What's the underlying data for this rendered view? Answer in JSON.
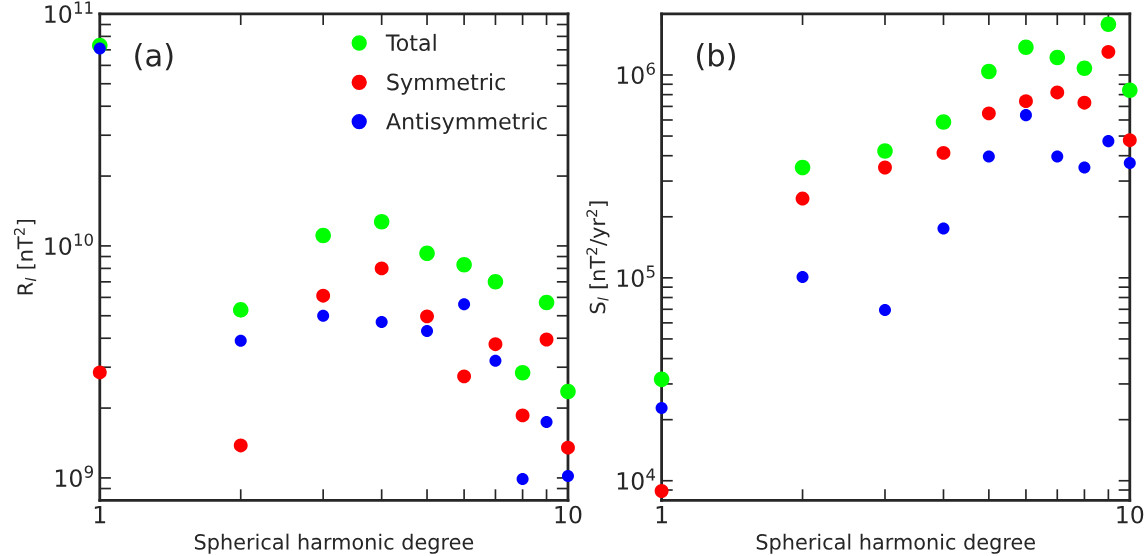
{
  "chart_data": [
    {
      "type": "scatter",
      "xlabel": "Spherical harmonic degree",
      "ylabel": "R$_{l}$ [nT$^{2}$]",
      "annotations": [
        "(a)"
      ],
      "log": "xy",
      "grid": false,
      "legend": "top right",
      "marker": "circle",
      "x": [
        1,
        2,
        3,
        4,
        5,
        6,
        7,
        8,
        9,
        10
      ],
      "xlim": [
        1,
        10
      ],
      "xticks": [
        1,
        {
          "value": 2,
          "label": null
        },
        {
          "value": 3,
          "label": null
        },
        {
          "value": 4,
          "label": null
        },
        {
          "value": 5,
          "label": null
        },
        {
          "value": 6,
          "label": null
        },
        {
          "value": 7,
          "label": null
        },
        {
          "value": 8,
          "label": null
        },
        {
          "value": 9,
          "label": null
        },
        10
      ],
      "ylim": [
        800000000.0,
        100000000000.0
      ],
      "yticks": [
        {
          "value": 900000000.0,
          "label": null
        },
        {
          "value": 1000000000.0,
          "label": "10$^{9}$"
        },
        {
          "value": 2000000000.0,
          "label": null
        },
        {
          "value": 3000000000.0,
          "label": null
        },
        {
          "value": 4000000000.0,
          "label": null
        },
        {
          "value": 5000000000.0,
          "label": null
        },
        {
          "value": 6000000000.0,
          "label": null
        },
        {
          "value": 7000000000.0,
          "label": null
        },
        {
          "value": 8000000000.0,
          "label": null
        },
        {
          "value": 9000000000.0,
          "label": null
        },
        {
          "value": 10000000000.0,
          "label": "10$^{10}$"
        },
        {
          "value": 20000000000.0,
          "label": null
        },
        {
          "value": 30000000000.0,
          "label": null
        },
        {
          "value": 40000000000.0,
          "label": null
        },
        {
          "value": 50000000000.0,
          "label": null
        },
        {
          "value": 60000000000.0,
          "label": null
        },
        {
          "value": 70000000000.0,
          "label": null
        },
        {
          "value": 80000000000.0,
          "label": null
        },
        {
          "value": 90000000000.0,
          "label": null
        },
        {
          "value": 100000000000.0,
          "label": "10$^{11}$"
        }
      ],
      "series": [
        {
          "name": "Total",
          "color": "#00ff00",
          "values": [
            73000000000.0,
            5300000000.0,
            11100000000.0,
            12700000000.0,
            9300000000.0,
            8300000000.0,
            7000000000.0,
            2840000000.0,
            5700000000.0,
            2360000000.0
          ]
        },
        {
          "name": "Symmetric",
          "color": "#ff0000",
          "values": [
            2850000000.0,
            1380000000.0,
            6100000000.0,
            8000000000.0,
            4970000000.0,
            2740000000.0,
            3770000000.0,
            1860000000.0,
            3950000000.0,
            1350000000.0
          ]
        },
        {
          "name": "Antisymmetric",
          "color": "#0000ff",
          "values": [
            71000000000.0,
            3900000000.0,
            5000000000.0,
            4700000000.0,
            4300000000.0,
            5600000000.0,
            3200000000.0,
            990000000.0,
            1740000000.0,
            1020000000.0
          ]
        }
      ]
    },
    {
      "type": "scatter",
      "xlabel": "Spherical harmonic degree",
      "ylabel": "S$_{l}$ [nT$^{2}$/yr$^{2}$]",
      "annotations": [
        "(b)"
      ],
      "log": "xy",
      "grid": false,
      "marker": "circle",
      "x": [
        1,
        2,
        3,
        4,
        5,
        6,
        7,
        8,
        9,
        10
      ],
      "xlim": [
        1,
        10
      ],
      "xticks": [
        1,
        {
          "value": 2,
          "label": null
        },
        {
          "value": 3,
          "label": null
        },
        {
          "value": 4,
          "label": null
        },
        {
          "value": 5,
          "label": null
        },
        {
          "value": 6,
          "label": null
        },
        {
          "value": 7,
          "label": null
        },
        {
          "value": 8,
          "label": null
        },
        {
          "value": 9,
          "label": null
        },
        10
      ],
      "ylim": [
        8000.0,
        2000000.0
      ],
      "yticks": [
        {
          "value": 9000.0,
          "label": null
        },
        {
          "value": 10000.0,
          "label": "10$^{4}$"
        },
        {
          "value": 20000.0,
          "label": null
        },
        {
          "value": 30000.0,
          "label": null
        },
        {
          "value": 40000.0,
          "label": null
        },
        {
          "value": 50000.0,
          "label": null
        },
        {
          "value": 60000.0,
          "label": null
        },
        {
          "value": 70000.0,
          "label": null
        },
        {
          "value": 80000.0,
          "label": null
        },
        {
          "value": 90000.0,
          "label": null
        },
        {
          "value": 100000.0,
          "label": "10$^{5}$"
        },
        {
          "value": 200000.0,
          "label": null
        },
        {
          "value": 300000.0,
          "label": null
        },
        {
          "value": 400000.0,
          "label": null
        },
        {
          "value": 500000.0,
          "label": null
        },
        {
          "value": 600000.0,
          "label": null
        },
        {
          "value": 700000.0,
          "label": null
        },
        {
          "value": 800000.0,
          "label": null
        },
        {
          "value": 900000.0,
          "label": null
        },
        {
          "value": 1000000.0,
          "label": "10$^{6}$"
        }
      ],
      "series": [
        {
          "color": "#00ff00",
          "values": [
            31600.0,
            350000.0,
            422000.0,
            586000.0,
            1040000.0,
            1370000.0,
            1220000.0,
            1080000.0,
            1780000.0,
            840000.0
          ]
        },
        {
          "color": "#ff0000",
          "values": [
            8900.0,
            246000.0,
            350000.0,
            413000.0,
            647000.0,
            743000.0,
            820000.0,
            730000.0,
            1300000.0,
            477000.0
          ]
        },
        {
          "color": "#0000ff",
          "values": [
            22800.0,
            101000.0,
            69500.0,
            175000.0,
            396000.0,
            634000.0,
            396000.0,
            350000.0,
            472000.0,
            368000.0
          ]
        }
      ]
    }
  ]
}
